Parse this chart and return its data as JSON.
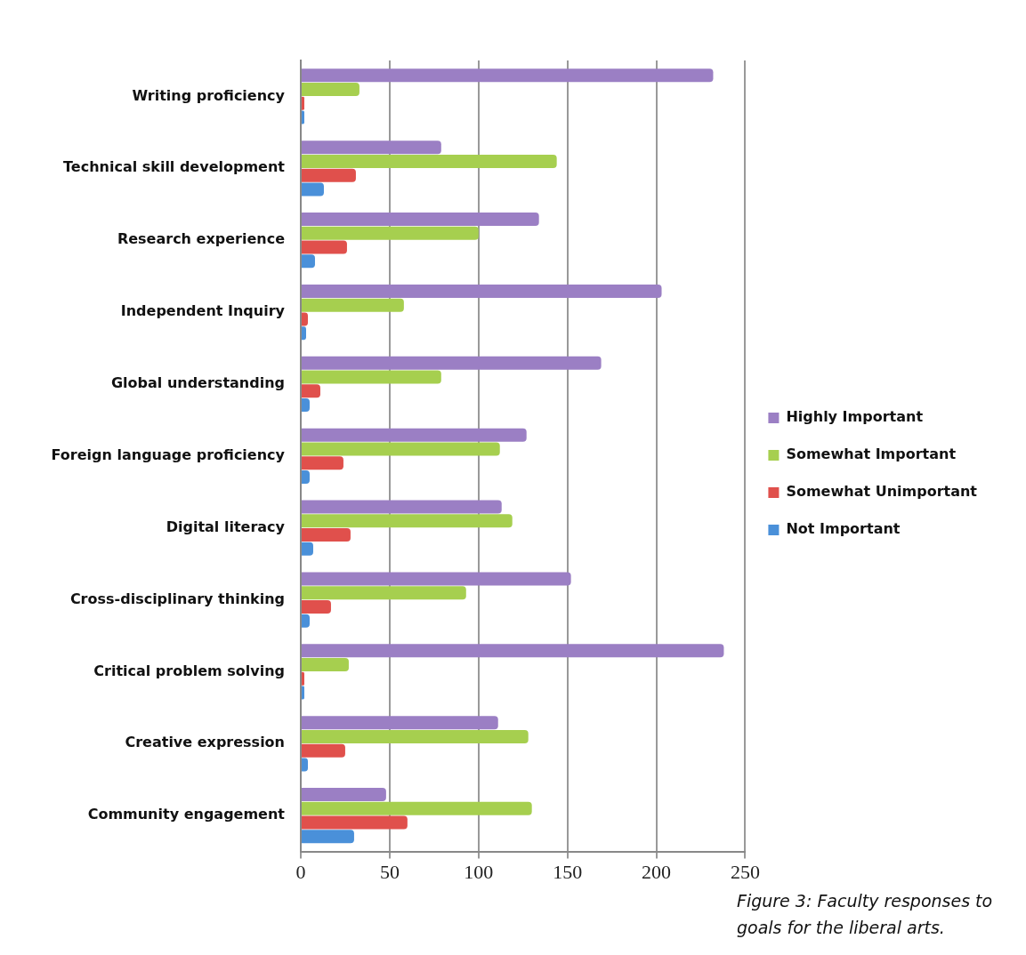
{
  "chart_data": {
    "type": "bar",
    "orientation": "horizontal",
    "categories": [
      "Writing proficiency",
      "Technical skill development",
      "Research experience",
      "Independent Inquiry",
      "Global understanding",
      "Foreign language proficiency",
      "Digital literacy",
      "Cross-disciplinary thinking",
      "Critical problem solving",
      "Creative expression",
      "Community engagement"
    ],
    "series": [
      {
        "name": "Highly Important",
        "color": "#9b7fc4",
        "values": [
          232,
          79,
          134,
          203,
          169,
          127,
          113,
          152,
          238,
          111,
          48
        ]
      },
      {
        "name": "Somewhat Important",
        "color": "#a6cf4f",
        "values": [
          33,
          144,
          100,
          58,
          79,
          112,
          119,
          93,
          27,
          128,
          130
        ]
      },
      {
        "name": "Somewhat Unimportant",
        "color": "#e0504c",
        "values": [
          2,
          31,
          26,
          4,
          11,
          24,
          28,
          17,
          2,
          25,
          60
        ]
      },
      {
        "name": "Not Important",
        "color": "#4a90d9",
        "values": [
          2,
          13,
          8,
          3,
          5,
          5,
          7,
          5,
          2,
          4,
          30
        ]
      }
    ],
    "xlim": [
      0,
      250
    ],
    "xticks": [
      0,
      50,
      100,
      150,
      200,
      250
    ],
    "grid": "x",
    "legend": "right",
    "annotations": [
      "Figure 3: Faculty responses to goals for the liberal arts."
    ]
  }
}
